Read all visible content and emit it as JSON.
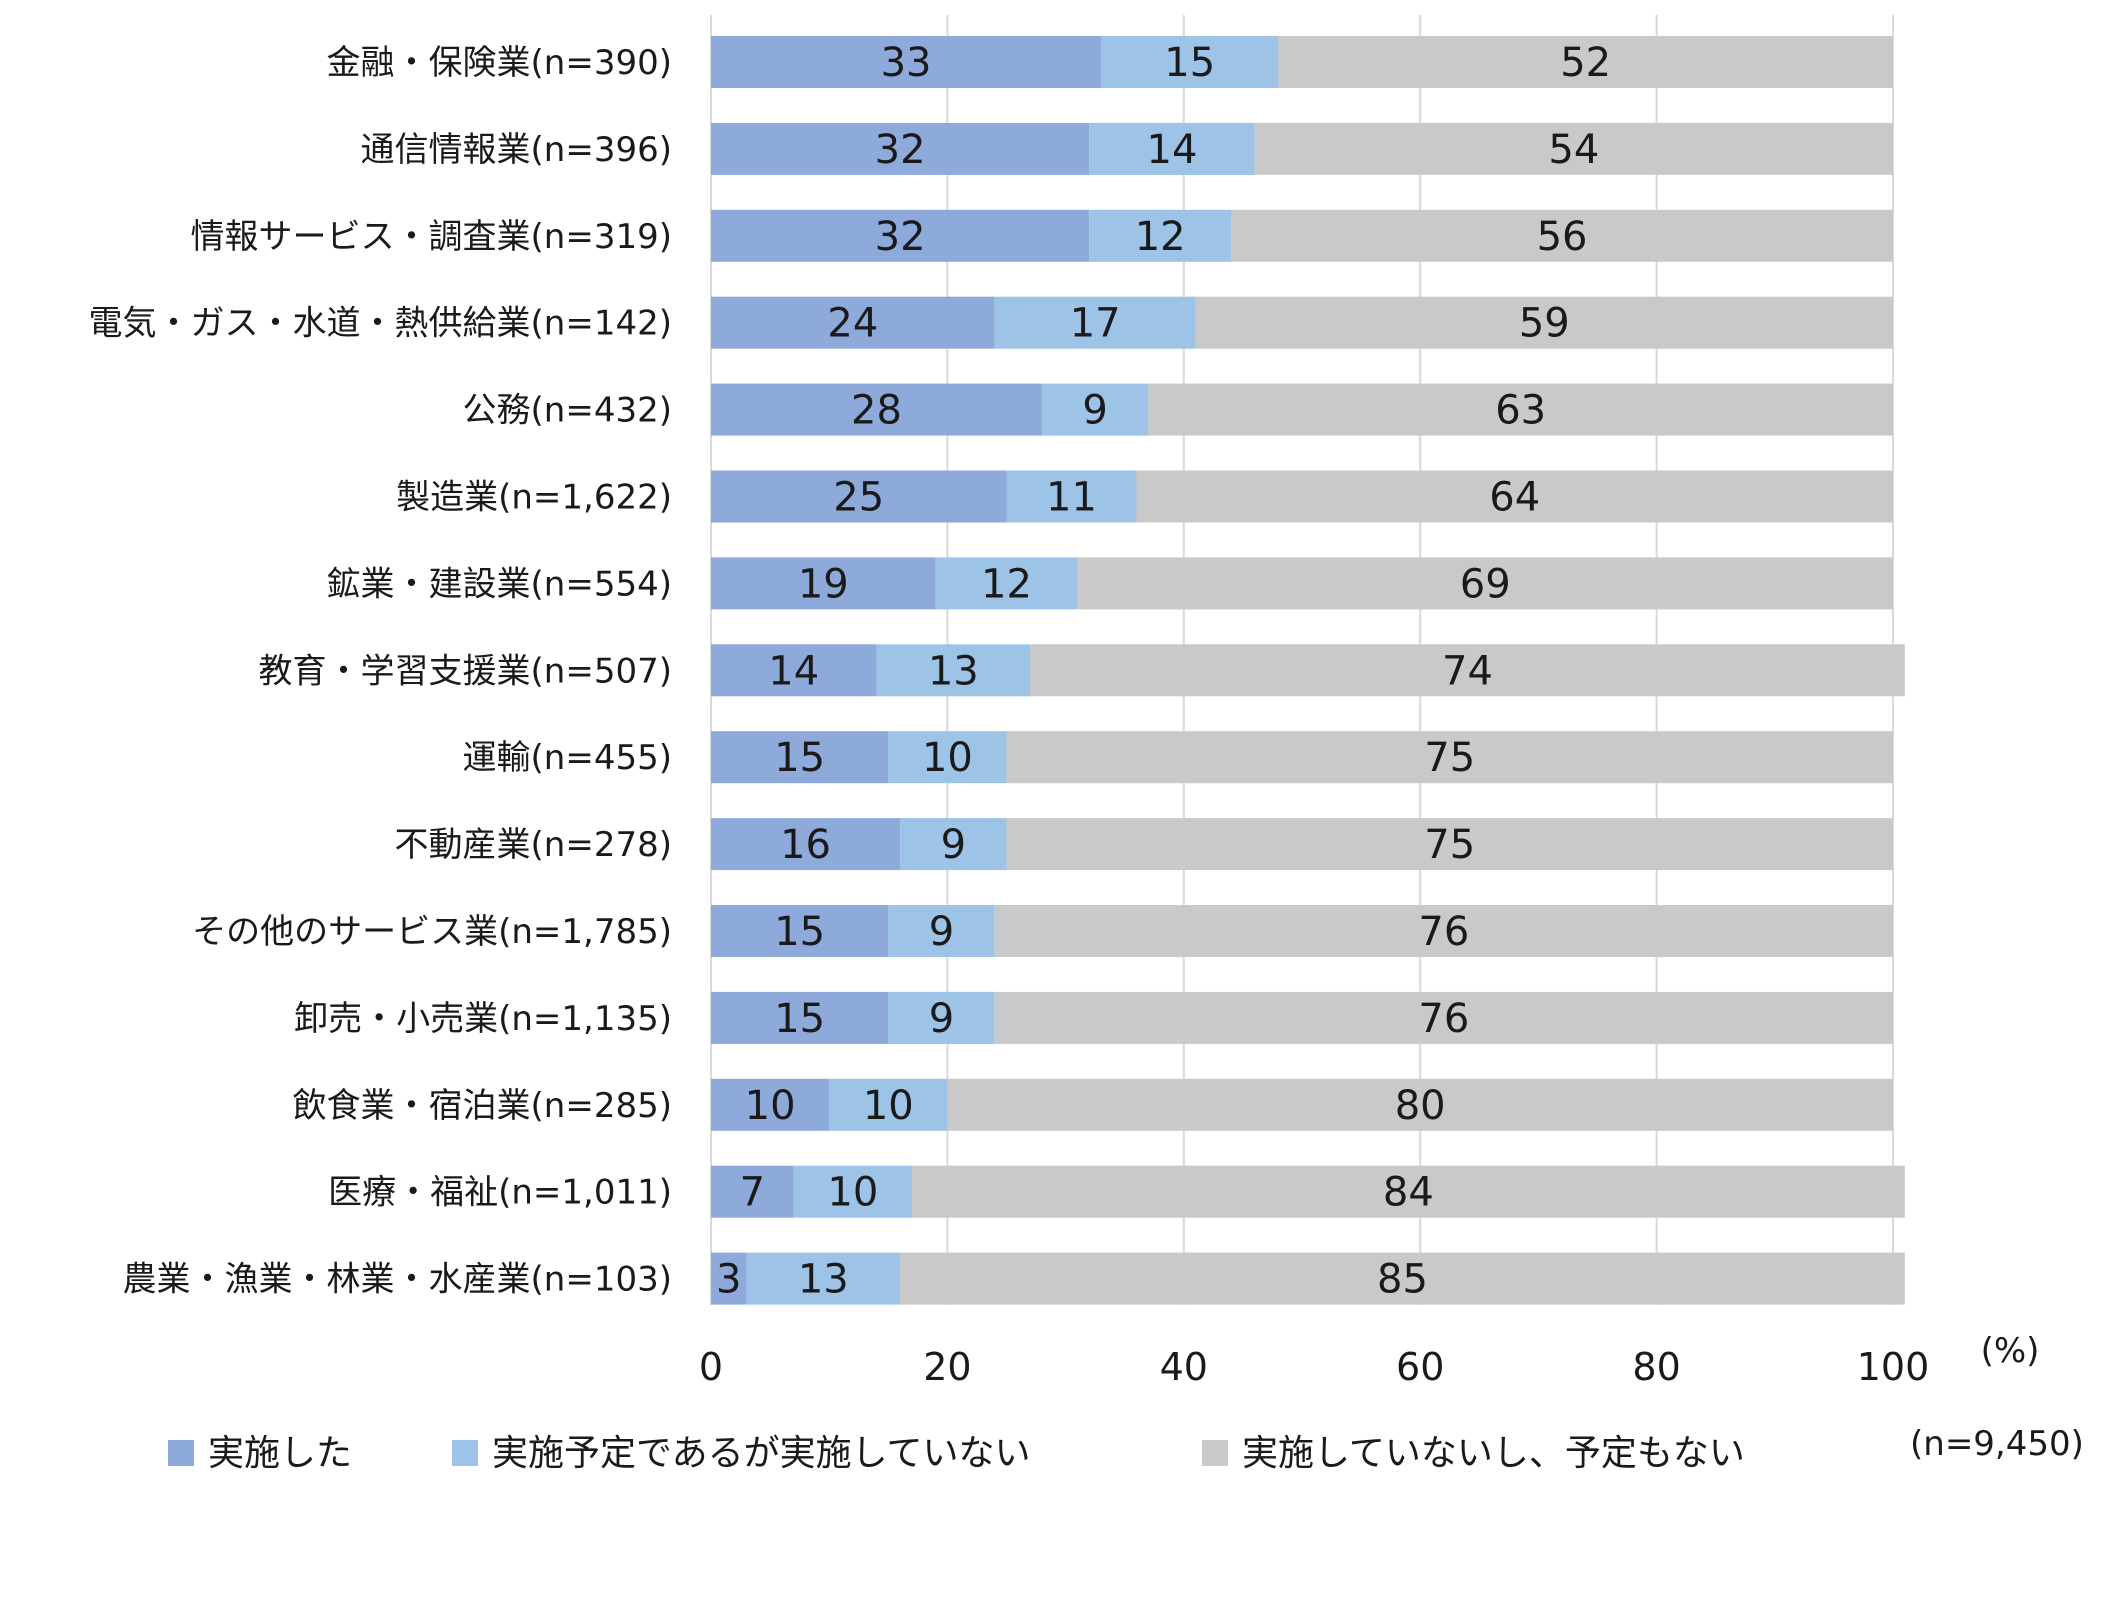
{
  "chart_data": {
    "type": "bar",
    "orientation": "horizontal",
    "stacked": true,
    "categories": [
      "金融・保険業(n=390)",
      "通信情報業(n=396)",
      "情報サービス・調査業(n=319)",
      "電気・ガス・水道・熱供給業(n=142)",
      "公務(n=432)",
      "製造業(n=1,622)",
      "鉱業・建設業(n=554)",
      "教育・学習支援業(n=507)",
      "運輸(n=455)",
      "不動産業(n=278)",
      "その他のサービス業(n=1,785)",
      "卸売・小売業(n=1,135)",
      "飲食業・宿泊業(n=285)",
      "医療・福祉(n=1,011)",
      "農業・漁業・林業・水産業(n=103)"
    ],
    "series": [
      {
        "name": "実施した",
        "color": "#8eaadb",
        "values": [
          33,
          32,
          32,
          24,
          28,
          25,
          19,
          14,
          15,
          16,
          15,
          15,
          10,
          7,
          3
        ]
      },
      {
        "name": "実施予定であるが実施していない",
        "color": "#9dc3e6",
        "values": [
          15,
          14,
          12,
          17,
          9,
          11,
          12,
          13,
          10,
          9,
          9,
          9,
          10,
          10,
          13
        ]
      },
      {
        "name": "実施していないし、予定もない",
        "color": "#c9c9c9",
        "values": [
          52,
          54,
          56,
          59,
          63,
          64,
          69,
          74,
          75,
          75,
          76,
          76,
          80,
          84,
          85
        ]
      }
    ],
    "xlim": [
      0,
      100
    ],
    "xticks": [
      "0",
      "20",
      "40",
      "60",
      "80",
      "100"
    ],
    "xunit": "(%)",
    "legend_position": "bottom",
    "note": "(n=9,450)",
    "grid": true
  }
}
